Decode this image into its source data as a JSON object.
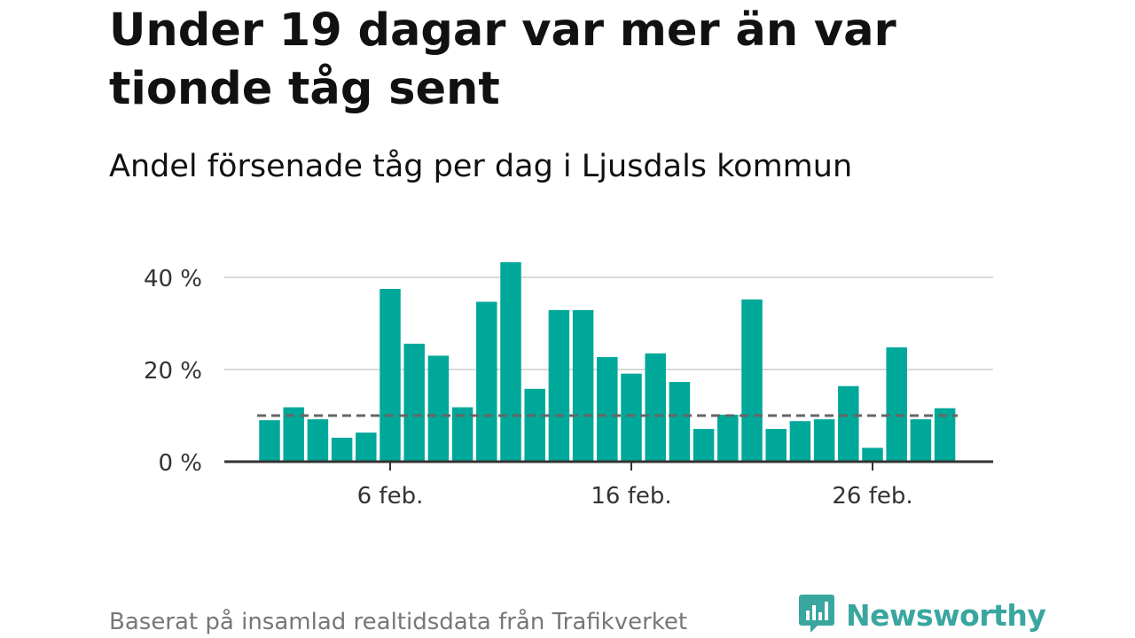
{
  "title": "Under 19 dagar var mer än var tionde tåg sent",
  "subtitle": "Andel försenade tåg per dag i Ljusdals kommun",
  "footer": "Baserat på insamlad realtidsdata från Trafikverket",
  "brand": {
    "name": "Newsworthy",
    "icon": "newsworthy-logo-icon",
    "color": "#3aa6a0"
  },
  "colors": {
    "bar": "#00a89a",
    "reference_line": "#666666",
    "grid": "#d9d9d9",
    "axis": "#333333"
  },
  "chart_data": {
    "type": "bar",
    "x": [
      1,
      2,
      3,
      4,
      5,
      6,
      7,
      8,
      9,
      10,
      11,
      12,
      13,
      14,
      15,
      16,
      17,
      18,
      19,
      20,
      21,
      22,
      23,
      24,
      25,
      26,
      27,
      28,
      29,
      30
    ],
    "values": [
      9.0,
      11.8,
      9.2,
      5.2,
      6.3,
      37.5,
      25.6,
      23.0,
      11.8,
      34.7,
      43.3,
      15.8,
      32.9,
      32.9,
      22.7,
      19.1,
      23.5,
      17.3,
      7.1,
      10.2,
      35.2,
      7.1,
      8.8,
      9.2,
      16.4,
      3.0,
      24.8,
      9.2,
      11.6,
      null
    ],
    "reference_value": 10,
    "yticks": [
      0,
      20,
      40
    ],
    "ytick_labels": [
      "0 %",
      "20 %",
      "40 %"
    ],
    "xtick_values": [
      6,
      16,
      26
    ],
    "xtick_labels": [
      "6 feb.",
      "16 feb.",
      "26 feb."
    ],
    "ylim": [
      0,
      45
    ],
    "grid": true,
    "legend": false
  }
}
